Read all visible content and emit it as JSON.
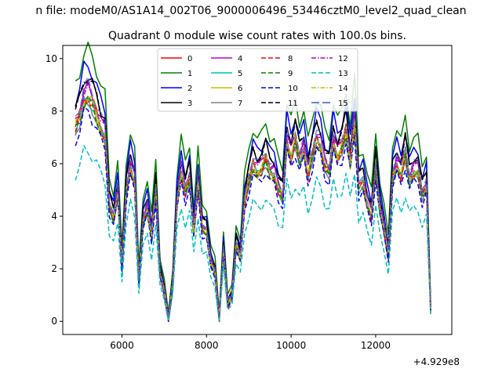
{
  "chart_data": {
    "type": "line",
    "suptitle": "n file: modeM0/AS1A14_002T06_9000006496_53446cztM0_level2_quad_clean",
    "title": "Quadrant 0 module wise count rates with 100.0s bins.",
    "xlabel": "",
    "ylabel": "",
    "x_offset_label": "+4.929e8",
    "xlim": [
      4600,
      13800
    ],
    "ylim": [
      -0.5,
      10.5
    ],
    "xticks": [
      6000,
      8000,
      10000,
      12000
    ],
    "xtick_labels": [
      "6000",
      "8000",
      "10000",
      "12000"
    ],
    "yticks": [
      0,
      2,
      4,
      6,
      8,
      10
    ],
    "ytick_labels": [
      "0",
      "2",
      "4",
      "6",
      "8",
      "10"
    ],
    "legend_position": "upper-center",
    "x": [
      4900,
      5000,
      5100,
      5200,
      5300,
      5400,
      5500,
      5600,
      5700,
      5800,
      5900,
      6000,
      6100,
      6200,
      6300,
      6400,
      6500,
      6600,
      6700,
      6800,
      6900,
      7000,
      7100,
      7200,
      7300,
      7400,
      7500,
      7600,
      7700,
      7800,
      7900,
      8000,
      8100,
      8200,
      8300,
      8400,
      8500,
      8600,
      8700,
      8800,
      8900,
      9000,
      9100,
      9200,
      9300,
      9400,
      9500,
      9600,
      9700,
      9800,
      9900,
      10000,
      10100,
      10200,
      10300,
      10400,
      10500,
      10600,
      10700,
      10800,
      10900,
      11000,
      11100,
      11200,
      11300,
      11400,
      11500,
      11600,
      11700,
      11800,
      11900,
      12000,
      12100,
      12200,
      12300,
      12400,
      12500,
      12600,
      12700,
      12800,
      12900,
      13000,
      13100,
      13200,
      13300
    ],
    "base_profile": [
      7.5,
      7.9,
      8.6,
      8.7,
      8.4,
      8.0,
      7.5,
      7.2,
      4.5,
      4.0,
      5.0,
      2.2,
      5.0,
      6.0,
      5.4,
      1.6,
      3.9,
      4.4,
      3.3,
      5.1,
      1.9,
      1.2,
      0.1,
      1.5,
      4.6,
      5.8,
      5.0,
      5.6,
      3.5,
      5.4,
      3.6,
      3.5,
      2.3,
      1.9,
      0.1,
      2.8,
      0.7,
      1.0,
      3.0,
      2.5,
      4.6,
      5.4,
      6.1,
      5.8,
      5.9,
      6.3,
      5.8,
      5.7,
      5.1,
      4.8,
      7.0,
      6.4,
      7.0,
      6.3,
      6.7,
      5.7,
      6.4,
      7.1,
      6.8,
      6.0,
      5.8,
      7.0,
      6.4,
      6.7,
      7.4,
      6.2,
      7.7,
      5.2,
      5.4,
      4.6,
      4.1,
      6.0,
      4.4,
      3.6,
      2.6,
      5.6,
      6.1,
      5.7,
      6.5,
      5.5,
      5.8,
      5.8,
      4.9,
      5.3,
      0.5
    ],
    "series": [
      {
        "name": "0",
        "color": "#ff0000",
        "dash": "solid",
        "scale": 1.0,
        "offset": -0.1
      },
      {
        "name": "1",
        "color": "#008000",
        "dash": "solid",
        "scale": 1.17,
        "offset": 0.2
      },
      {
        "name": "2",
        "color": "#0000ff",
        "dash": "solid",
        "scale": 1.12,
        "offset": 0.0
      },
      {
        "name": "3",
        "color": "#000000",
        "dash": "solid",
        "scale": 1.06,
        "offset": 0.1
      },
      {
        "name": "4",
        "color": "#bf00bf",
        "dash": "solid",
        "scale": 1.02,
        "offset": 0.0
      },
      {
        "name": "5",
        "color": "#00bfbf",
        "dash": "solid",
        "scale": 0.97,
        "offset": 0.0
      },
      {
        "name": "6",
        "color": "#bfbf00",
        "dash": "solid",
        "scale": 0.98,
        "offset": -0.1
      },
      {
        "name": "7",
        "color": "#808080",
        "dash": "solid",
        "scale": 0.96,
        "offset": 0.0
      },
      {
        "name": "8",
        "color": "#ff0000",
        "dash": "dashed",
        "scale": 1.0,
        "offset": -0.2
      },
      {
        "name": "9",
        "color": "#008000",
        "dash": "dashed",
        "scale": 0.98,
        "offset": -0.1
      },
      {
        "name": "10",
        "color": "#0000ff",
        "dash": "dashed",
        "scale": 0.93,
        "offset": -0.1
      },
      {
        "name": "11",
        "color": "#000000",
        "dash": "dashed",
        "scale": 1.07,
        "offset": 0.0
      },
      {
        "name": "12",
        "color": "#bf00bf",
        "dash": "dashdot",
        "scale": 1.0,
        "offset": 0.1
      },
      {
        "name": "13",
        "color": "#00bfbf",
        "dash": "dashed",
        "scale": 0.76,
        "offset": -0.1
      },
      {
        "name": "14",
        "color": "#bfbf00",
        "dash": "dashdot",
        "scale": 0.99,
        "offset": 0.0
      },
      {
        "name": "15",
        "color": "#3f59cf",
        "dash": "longdash",
        "scale": 1.04,
        "offset": 0.0
      }
    ]
  }
}
